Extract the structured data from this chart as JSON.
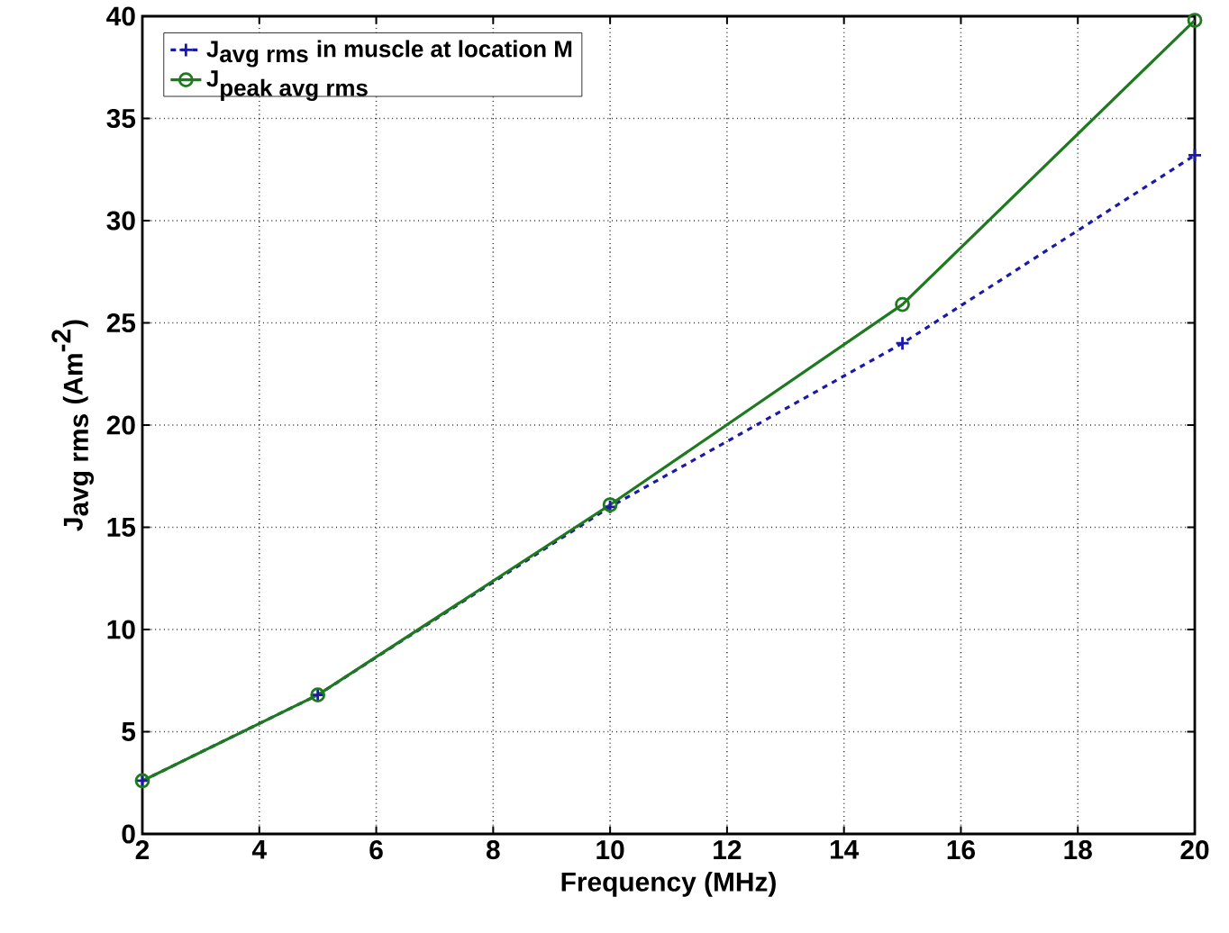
{
  "chart_data": {
    "type": "line",
    "xlabel": "Frequency (MHz)",
    "ylabel": "\\textbf{J}_{\\textbf{avg rms}}\\textbf{ (Am}^{\\textbf{-2}}\\textbf{)}",
    "x": [
      2,
      5,
      10,
      15,
      20
    ],
    "series": [
      {
        "name": "\\textbf{J}_{\\textbf{avg rms}}\\textbf{ in muscle at location M}",
        "color": "#1a1aa6",
        "values": [
          2.6,
          6.8,
          16.0,
          24.0,
          33.2
        ],
        "marker": "cross",
        "line_style": "dashed"
      },
      {
        "name": "\\textbf{J}_{\\textbf{peak avg rms}}",
        "color": "#1e7a1e",
        "values": [
          2.6,
          6.8,
          16.1,
          25.9,
          39.8
        ],
        "marker": "circle",
        "line_style": "solid"
      }
    ],
    "xlim": [
      2,
      20
    ],
    "ylim": [
      0,
      40
    ],
    "xticks": [
      2,
      4,
      6,
      8,
      10,
      12,
      14,
      16,
      18,
      20
    ],
    "yticks": [
      0,
      5,
      10,
      15,
      20,
      25,
      30,
      35,
      40
    ],
    "grid": true,
    "legend": "top left"
  }
}
